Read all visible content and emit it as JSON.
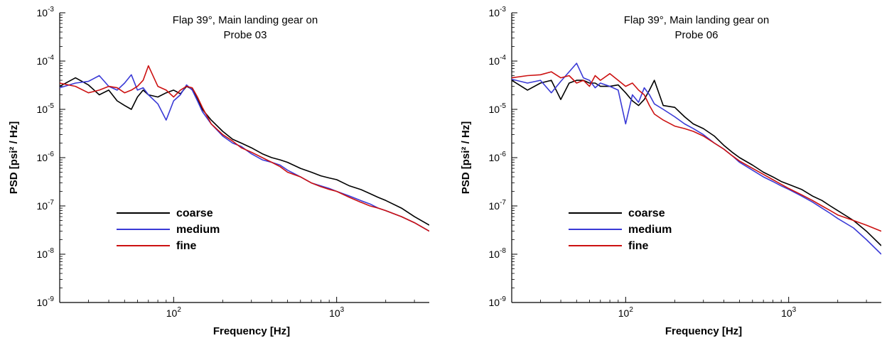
{
  "colors": {
    "coarse": "#000000",
    "medium": "#3a3ad6",
    "fine": "#cc1111"
  },
  "chart_data": [
    {
      "type": "line",
      "title": "Flap 39°, Main landing gear on",
      "subtitle": "Probe 03",
      "xlabel": "Frequency [Hz]",
      "ylabel": "PSD [psi² / Hz]",
      "xscale": "log",
      "yscale": "log",
      "xlim": [
        20,
        3700
      ],
      "ylim": [
        1e-09,
        0.001
      ],
      "x_tick_labels": [
        {
          "base": "10",
          "exp": "2",
          "value": 100
        },
        {
          "base": "10",
          "exp": "3",
          "value": 1000
        }
      ],
      "y_tick_labels": [
        {
          "base": "10",
          "exp": "-3",
          "value": 0.001
        },
        {
          "base": "10",
          "exp": "-4",
          "value": 0.0001
        },
        {
          "base": "10",
          "exp": "-5",
          "value": 1e-05
        },
        {
          "base": "10",
          "exp": "-6",
          "value": 1e-06
        },
        {
          "base": "10",
          "exp": "-7",
          "value": 1e-07
        },
        {
          "base": "10",
          "exp": "-8",
          "value": 1e-08
        },
        {
          "base": "10",
          "exp": "-9",
          "value": 1e-09
        }
      ],
      "legend": "lower-left",
      "series": [
        {
          "name": "coarse",
          "x": [
            20,
            25,
            30,
            35,
            40,
            45,
            50,
            55,
            60,
            65,
            70,
            80,
            90,
            100,
            110,
            120,
            130,
            140,
            150,
            170,
            200,
            230,
            260,
            300,
            350,
            400,
            450,
            500,
            600,
            700,
            800,
            900,
            1000,
            1200,
            1400,
            1600,
            1800,
            2000,
            2500,
            3000,
            3700
          ],
          "y": [
            3e-05,
            4.5e-05,
            3.2e-05,
            2e-05,
            2.5e-05,
            1.5e-05,
            1.2e-05,
            1e-05,
            1.8e-05,
            2.5e-05,
            2e-05,
            1.8e-05,
            2.2e-05,
            2.5e-05,
            2.1e-05,
            3e-05,
            2.6e-05,
            1.6e-05,
            1e-05,
            6e-06,
            3.5e-06,
            2.4e-06,
            2e-06,
            1.6e-06,
            1.2e-06,
            1e-06,
            9e-07,
            8e-07,
            6e-07,
            5e-07,
            4.2e-07,
            3.8e-07,
            3.5e-07,
            2.6e-07,
            2.2e-07,
            1.8e-07,
            1.5e-07,
            1.3e-07,
            9e-08,
            6e-08,
            4e-08
          ]
        },
        {
          "name": "medium",
          "x": [
            20,
            25,
            30,
            35,
            40,
            45,
            50,
            55,
            60,
            65,
            70,
            80,
            90,
            100,
            110,
            120,
            130,
            140,
            150,
            170,
            200,
            230,
            260,
            300,
            350,
            400,
            450,
            500,
            600,
            700,
            800,
            900,
            1000,
            1200,
            1400,
            1600,
            1800,
            2000,
            2500,
            3000,
            3700
          ],
          "y": [
            2.8e-05,
            3.5e-05,
            3.8e-05,
            5e-05,
            3e-05,
            2.5e-05,
            3.5e-05,
            5.2e-05,
            2.5e-05,
            2.8e-05,
            2e-05,
            1.3e-05,
            6e-06,
            1.5e-05,
            2e-05,
            3.2e-05,
            2.5e-05,
            1.5e-05,
            9e-06,
            5e-06,
            2.8e-06,
            2e-06,
            1.7e-06,
            1.2e-06,
            9e-07,
            8e-07,
            7e-07,
            5.5e-07,
            4e-07,
            3e-07,
            2.6e-07,
            2.3e-07,
            2e-07,
            1.6e-07,
            1.3e-07,
            1.1e-07,
            9e-08,
            8e-08,
            6e-08,
            4.5e-08,
            3e-08
          ]
        },
        {
          "name": "fine",
          "x": [
            20,
            25,
            30,
            35,
            40,
            45,
            50,
            55,
            60,
            65,
            70,
            80,
            90,
            100,
            110,
            120,
            130,
            140,
            150,
            170,
            200,
            230,
            260,
            300,
            350,
            400,
            450,
            500,
            600,
            700,
            800,
            900,
            1000,
            1200,
            1400,
            1600,
            1800,
            2000,
            2500,
            3000,
            3700
          ],
          "y": [
            3.5e-05,
            3e-05,
            2.2e-05,
            2.5e-05,
            3e-05,
            2.8e-05,
            2.2e-05,
            2.5e-05,
            3e-05,
            4e-05,
            8e-05,
            3e-05,
            2.5e-05,
            1.8e-05,
            2.5e-05,
            3e-05,
            2.8e-05,
            1.8e-05,
            1.1e-05,
            5e-06,
            3e-06,
            2.2e-06,
            1.6e-06,
            1.3e-06,
            1e-06,
            8e-07,
            6.5e-07,
            5e-07,
            4e-07,
            3e-07,
            2.5e-07,
            2.2e-07,
            2e-07,
            1.5e-07,
            1.2e-07,
            1e-07,
            9e-08,
            8e-08,
            6e-08,
            4.5e-08,
            3e-08
          ]
        }
      ]
    },
    {
      "type": "line",
      "title": "Flap 39°, Main landing gear on",
      "subtitle": "Probe 06",
      "xlabel": "Frequency [Hz]",
      "ylabel": "PSD [psi² / Hz]",
      "xscale": "log",
      "yscale": "log",
      "xlim": [
        20,
        3700
      ],
      "ylim": [
        1e-09,
        0.001
      ],
      "x_tick_labels": [
        {
          "base": "10",
          "exp": "2",
          "value": 100
        },
        {
          "base": "10",
          "exp": "3",
          "value": 1000
        }
      ],
      "y_tick_labels": [
        {
          "base": "10",
          "exp": "-3",
          "value": 0.001
        },
        {
          "base": "10",
          "exp": "-4",
          "value": 0.0001
        },
        {
          "base": "10",
          "exp": "-5",
          "value": 1e-05
        },
        {
          "base": "10",
          "exp": "-6",
          "value": 1e-06
        },
        {
          "base": "10",
          "exp": "-7",
          "value": 1e-07
        },
        {
          "base": "10",
          "exp": "-8",
          "value": 1e-08
        },
        {
          "base": "10",
          "exp": "-9",
          "value": 1e-09
        }
      ],
      "legend": "lower-left",
      "series": [
        {
          "name": "coarse",
          "x": [
            20,
            25,
            30,
            35,
            40,
            45,
            50,
            55,
            60,
            65,
            70,
            80,
            90,
            100,
            110,
            120,
            130,
            140,
            150,
            170,
            200,
            230,
            260,
            300,
            350,
            400,
            450,
            500,
            600,
            700,
            800,
            900,
            1000,
            1200,
            1400,
            1600,
            1800,
            2000,
            2500,
            3000,
            3700
          ],
          "y": [
            4e-05,
            2.5e-05,
            3.5e-05,
            4e-05,
            1.6e-05,
            3.5e-05,
            4e-05,
            4e-05,
            3.5e-05,
            3.5e-05,
            3e-05,
            3e-05,
            3.2e-05,
            2.2e-05,
            1.5e-05,
            1.2e-05,
            1.6e-05,
            2.5e-05,
            4e-05,
            1.2e-05,
            1.1e-05,
            7e-06,
            5e-06,
            4e-06,
            2.8e-06,
            1.8e-06,
            1.3e-06,
            1e-06,
            7e-07,
            5e-07,
            4e-07,
            3.2e-07,
            2.8e-07,
            2.2e-07,
            1.6e-07,
            1.3e-07,
            1e-07,
            8e-08,
            5e-08,
            3e-08,
            1.5e-08
          ]
        },
        {
          "name": "medium",
          "x": [
            20,
            25,
            30,
            35,
            40,
            45,
            50,
            55,
            60,
            65,
            70,
            80,
            90,
            100,
            110,
            120,
            130,
            140,
            150,
            170,
            200,
            230,
            260,
            300,
            350,
            400,
            450,
            500,
            600,
            700,
            800,
            900,
            1000,
            1200,
            1400,
            1600,
            1800,
            2000,
            2500,
            3000,
            3700
          ],
          "y": [
            4.2e-05,
            3.5e-05,
            4e-05,
            2.2e-05,
            3.8e-05,
            6e-05,
            9e-05,
            4.5e-05,
            4e-05,
            2.8e-05,
            3.5e-05,
            3e-05,
            2.5e-05,
            5e-06,
            2e-05,
            1.4e-05,
            2.8e-05,
            2e-05,
            1.3e-05,
            1e-05,
            7e-06,
            5e-06,
            4e-06,
            3e-06,
            2e-06,
            1.5e-06,
            1.1e-06,
            8e-07,
            5.5e-07,
            4e-07,
            3.2e-07,
            2.6e-07,
            2.2e-07,
            1.6e-07,
            1.2e-07,
            9e-08,
            7e-08,
            5.5e-08,
            3.5e-08,
            2e-08,
            1e-08
          ]
        },
        {
          "name": "fine",
          "x": [
            20,
            25,
            30,
            35,
            40,
            45,
            50,
            55,
            60,
            65,
            70,
            80,
            90,
            100,
            110,
            120,
            130,
            140,
            150,
            170,
            200,
            230,
            260,
            300,
            350,
            400,
            450,
            500,
            600,
            700,
            800,
            900,
            1000,
            1200,
            1400,
            1600,
            1800,
            2000,
            2500,
            3000,
            3700
          ],
          "y": [
            4.5e-05,
            5e-05,
            5.2e-05,
            6e-05,
            4.5e-05,
            5e-05,
            3.5e-05,
            4e-05,
            3e-05,
            5e-05,
            4e-05,
            5.5e-05,
            4e-05,
            3e-05,
            3.5e-05,
            2.5e-05,
            2e-05,
            1.2e-05,
            8e-06,
            6e-06,
            4.5e-06,
            4e-06,
            3.5e-06,
            2.8e-06,
            2e-06,
            1.5e-06,
            1.1e-06,
            8.5e-07,
            6e-07,
            4.5e-07,
            3.5e-07,
            2.8e-07,
            2.3e-07,
            1.7e-07,
            1.3e-07,
            1e-07,
            8e-08,
            6.5e-08,
            5e-08,
            4e-08,
            3e-08
          ]
        }
      ]
    }
  ]
}
